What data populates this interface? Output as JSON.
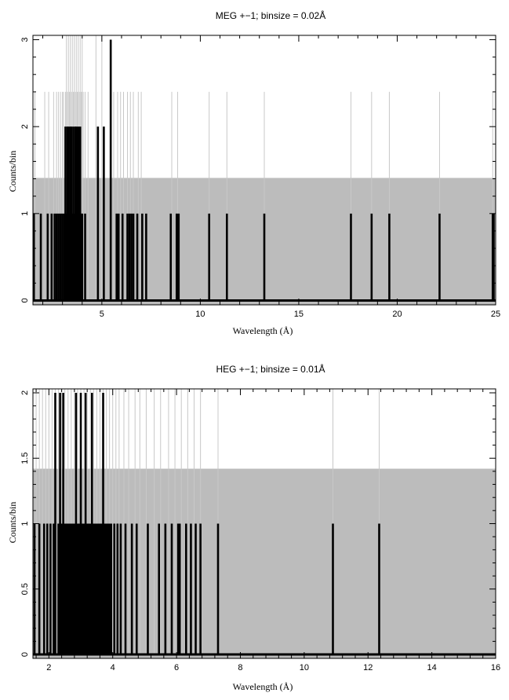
{
  "chart_data": [
    {
      "type": "bar",
      "title": "MEG +−1; binsize = 0.02Å",
      "xlabel": "Wavelength (Å)",
      "ylabel": "Counts/bin",
      "xlim": [
        1.5,
        25
      ],
      "ylim": [
        -0.05,
        3.05
      ],
      "xticks": [
        5,
        10,
        15,
        20,
        25
      ],
      "yticks": [
        0,
        1,
        2,
        3
      ],
      "background_level": 1.41,
      "colors": {
        "counts": "#000000",
        "background": "#bcbcbc",
        "upper_limits": "#c8c8c8"
      },
      "upper_limit_lines": {
        "height": 2.4,
        "x": [
          1.6,
          2.1,
          2.3,
          2.55,
          2.7,
          2.8,
          2.9,
          3.0,
          3.05,
          3.15,
          3.25,
          3.35,
          3.45,
          3.55,
          3.65,
          3.75,
          3.85,
          3.95,
          4.05,
          4.15,
          4.3,
          5.6,
          5.8,
          5.95,
          6.1,
          6.3,
          6.45,
          6.6,
          6.85,
          7.0,
          8.55,
          8.85,
          10.45,
          11.35,
          13.25,
          17.65,
          18.7,
          19.6,
          22.15,
          24.85
        ]
      },
      "tall_upper_limit_lines": {
        "height": 3.05,
        "x": [
          3.2,
          3.3,
          3.4,
          3.5,
          3.6,
          3.7,
          3.8,
          3.9,
          4.0,
          4.7,
          5.0
        ]
      },
      "counts": {
        "x": [
          1.55,
          1.9,
          2.25,
          2.45,
          2.6,
          2.7,
          2.8,
          2.9,
          3.0,
          3.1,
          3.15,
          3.2,
          3.25,
          3.3,
          3.35,
          3.4,
          3.45,
          3.5,
          3.55,
          3.6,
          3.65,
          3.7,
          3.75,
          3.8,
          3.85,
          3.9,
          3.95,
          4.0,
          4.15,
          4.8,
          5.1,
          5.45,
          5.75,
          5.85,
          6.05,
          6.3,
          6.4,
          6.5,
          6.6,
          6.8,
          7.05,
          7.25,
          8.5,
          8.8,
          8.9,
          10.45,
          11.35,
          13.25,
          17.65,
          18.7,
          19.6,
          22.15,
          24.85,
          24.9
        ],
        "values": [
          1,
          1,
          1,
          1,
          1,
          1,
          1,
          1,
          1,
          1,
          2,
          1,
          2,
          2,
          1,
          2,
          2,
          1,
          2,
          1,
          2,
          2,
          1,
          2,
          1,
          2,
          1,
          1,
          1,
          2,
          2,
          3,
          1,
          1,
          1,
          1,
          1,
          1,
          1,
          1,
          1,
          1,
          1,
          1,
          1,
          1,
          1,
          1,
          1,
          1,
          1,
          1,
          1,
          1
        ]
      }
    },
    {
      "type": "bar",
      "title": "HEG +−1; binsize = 0.01Å",
      "xlabel": "Wavelength (Å)",
      "ylabel": "Counts/bin",
      "xlim": [
        1.5,
        16
      ],
      "ylim": [
        -0.03,
        2.03
      ],
      "xticks": [
        2,
        4,
        6,
        8,
        10,
        12,
        14,
        16
      ],
      "yticks": [
        0,
        0.5,
        1,
        1.5,
        2
      ],
      "yticklabels": [
        "0",
        "0.5",
        "1",
        "1.5",
        "2"
      ],
      "background_level": 1.42,
      "colors": {
        "counts": "#000000",
        "background": "#bcbcbc",
        "upper_limits": "#c8c8c8"
      },
      "upper_limit_lines": {
        "height": 2.03,
        "x": [
          1.6,
          1.7,
          1.8,
          1.9,
          2.0,
          2.1,
          2.2,
          2.3,
          2.4,
          2.5,
          2.6,
          2.7,
          2.8,
          2.9,
          3.0,
          3.1,
          3.2,
          3.3,
          3.4,
          3.5,
          3.6,
          3.7,
          3.8,
          3.9,
          4.0,
          4.1,
          4.2,
          4.35,
          4.5,
          4.7,
          4.85,
          5.05,
          5.3,
          5.5,
          5.75,
          5.95,
          6.15,
          6.35,
          6.55,
          6.75,
          7.3,
          10.9,
          12.35
        ]
      },
      "counts": {
        "x": [
          1.55,
          1.7,
          1.85,
          1.95,
          2.05,
          2.15,
          2.2,
          2.3,
          2.35,
          2.4,
          2.45,
          2.5,
          2.55,
          2.6,
          2.65,
          2.7,
          2.75,
          2.8,
          2.85,
          2.9,
          2.95,
          3.0,
          3.05,
          3.1,
          3.15,
          3.2,
          3.25,
          3.3,
          3.35,
          3.4,
          3.45,
          3.5,
          3.55,
          3.6,
          3.65,
          3.7,
          3.75,
          3.8,
          3.85,
          3.9,
          3.95,
          4.05,
          4.15,
          4.25,
          4.4,
          4.6,
          4.75,
          5.1,
          5.45,
          5.65,
          5.85,
          6.05,
          6.1,
          6.3,
          6.45,
          6.6,
          6.75,
          7.3,
          10.9,
          12.35
        ],
        "values": [
          1,
          1,
          1,
          1,
          1,
          1,
          2,
          1,
          2,
          1,
          2,
          1,
          1,
          1,
          1,
          1,
          1,
          1,
          2,
          1,
          1,
          2,
          1,
          1,
          2,
          1,
          1,
          1,
          2,
          1,
          1,
          1,
          1,
          1,
          1,
          2,
          1,
          1,
          1,
          1,
          1,
          1,
          1,
          1,
          1,
          1,
          1,
          1,
          1,
          1,
          1,
          1,
          1,
          1,
          1,
          1,
          1,
          1,
          1,
          1
        ]
      }
    }
  ]
}
